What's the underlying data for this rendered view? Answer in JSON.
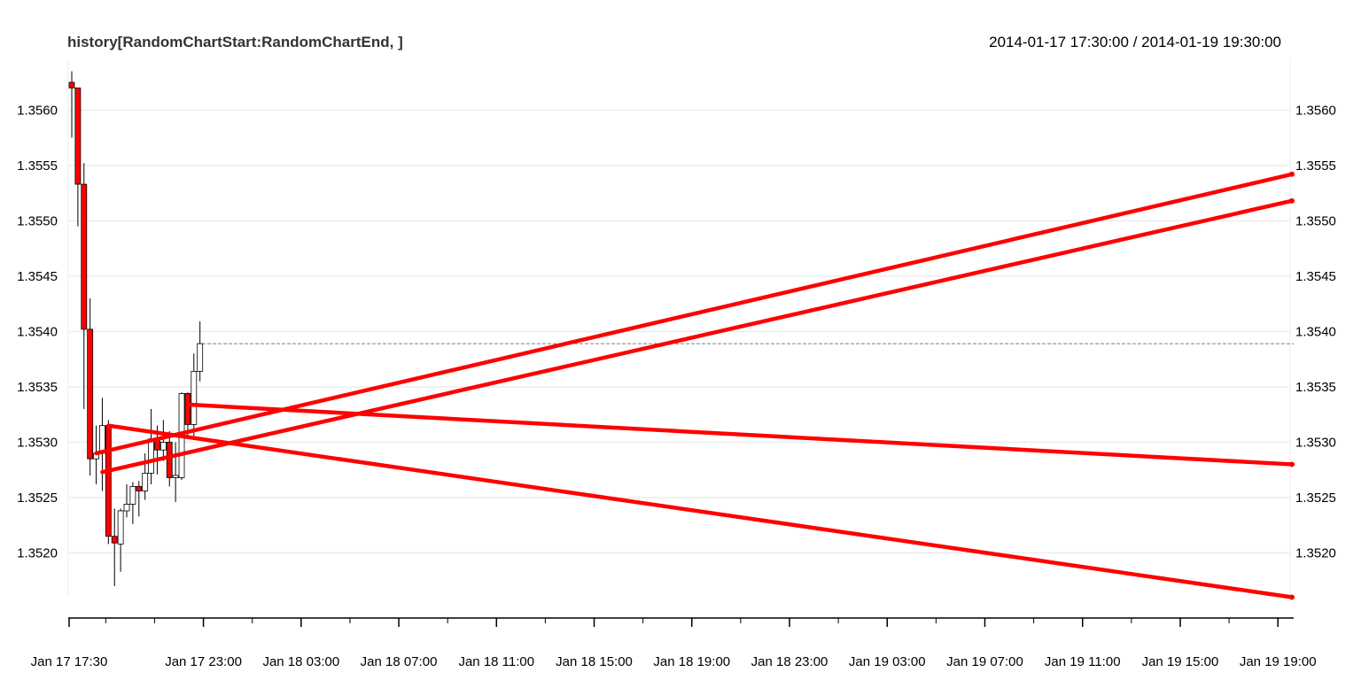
{
  "chart_data": {
    "type": "candlestick",
    "title": "history[RandomChartStart:RandomChartEnd, ]",
    "date_range": "2014-01-17 17:30:00 / 2014-01-19 19:30:00",
    "x_start": "2014-01-17 17:30",
    "x_end": "2014-01-19 19:30",
    "ylim": [
      1.35162,
      1.35645
    ],
    "y_ticks": [
      "1.3520",
      "1.3525",
      "1.3530",
      "1.3535",
      "1.3540",
      "1.3545",
      "1.3550",
      "1.3555",
      "1.3560"
    ],
    "x_tick_labels": [
      {
        "t": "2014-01-17 17:30",
        "label": "Jan 17 17:30"
      },
      {
        "t": "2014-01-17 23:00",
        "label": "Jan 17 23:00"
      },
      {
        "t": "2014-01-18 03:00",
        "label": "Jan 18 03:00"
      },
      {
        "t": "2014-01-18 07:00",
        "label": "Jan 18 07:00"
      },
      {
        "t": "2014-01-18 11:00",
        "label": "Jan 18 11:00"
      },
      {
        "t": "2014-01-18 15:00",
        "label": "Jan 18 15:00"
      },
      {
        "t": "2014-01-18 19:00",
        "label": "Jan 18 19:00"
      },
      {
        "t": "2014-01-18 23:00",
        "label": "Jan 18 23:00"
      },
      {
        "t": "2014-01-19 03:00",
        "label": "Jan 19 03:00"
      },
      {
        "t": "2014-01-19 07:00",
        "label": "Jan 19 07:00"
      },
      {
        "t": "2014-01-19 11:00",
        "label": "Jan 19 11:00"
      },
      {
        "t": "2014-01-19 15:00",
        "label": "Jan 19 15:00"
      },
      {
        "t": "2014-01-19 19:00",
        "label": "Jan 19 19:00"
      }
    ],
    "x_minor_ticks": [
      "2014-01-17 19:00",
      "2014-01-17 21:00",
      "2014-01-18 01:00",
      "2014-01-18 05:00",
      "2014-01-18 09:00",
      "2014-01-18 13:00",
      "2014-01-18 17:00",
      "2014-01-18 21:00",
      "2014-01-19 01:00",
      "2014-01-19 05:00",
      "2014-01-19 09:00",
      "2014-01-19 13:00",
      "2014-01-19 17:00"
    ],
    "last_price": 1.35389,
    "candles": [
      {
        "t": "2014-01-17 17:30",
        "o": 1.35625,
        "h": 1.35635,
        "l": 1.35575,
        "c": 1.3562
      },
      {
        "t": "2014-01-17 17:45",
        "o": 1.3562,
        "h": 1.3562,
        "l": 1.35495,
        "c": 1.35533
      },
      {
        "t": "2014-01-17 18:00",
        "o": 1.35533,
        "h": 1.35552,
        "l": 1.3533,
        "c": 1.35402
      },
      {
        "t": "2014-01-17 18:15",
        "o": 1.35402,
        "h": 1.3543,
        "l": 1.3527,
        "c": 1.35285
      },
      {
        "t": "2014-01-17 18:30",
        "o": 1.35285,
        "h": 1.35315,
        "l": 1.35262,
        "c": 1.3529
      },
      {
        "t": "2014-01-17 18:45",
        "o": 1.3529,
        "h": 1.3534,
        "l": 1.35256,
        "c": 1.35315
      },
      {
        "t": "2014-01-17 19:00",
        "o": 1.35315,
        "h": 1.3532,
        "l": 1.35208,
        "c": 1.35215
      },
      {
        "t": "2014-01-17 19:15",
        "o": 1.35215,
        "h": 1.3524,
        "l": 1.3517,
        "c": 1.35209
      },
      {
        "t": "2014-01-17 19:30",
        "o": 1.35208,
        "h": 1.3524,
        "l": 1.35183,
        "c": 1.35238
      },
      {
        "t": "2014-01-17 19:45",
        "o": 1.35238,
        "h": 1.35262,
        "l": 1.35232,
        "c": 1.35244
      },
      {
        "t": "2014-01-17 20:00",
        "o": 1.35244,
        "h": 1.35264,
        "l": 1.35226,
        "c": 1.3526
      },
      {
        "t": "2014-01-17 20:15",
        "o": 1.3526,
        "h": 1.35265,
        "l": 1.35233,
        "c": 1.35256
      },
      {
        "t": "2014-01-17 20:30",
        "o": 1.35256,
        "h": 1.3529,
        "l": 1.35248,
        "c": 1.35272
      },
      {
        "t": "2014-01-17 20:45",
        "o": 1.35272,
        "h": 1.3533,
        "l": 1.35262,
        "c": 1.35303
      },
      {
        "t": "2014-01-17 21:00",
        "o": 1.35303,
        "h": 1.35315,
        "l": 1.35271,
        "c": 1.35293
      },
      {
        "t": "2014-01-17 21:15",
        "o": 1.35293,
        "h": 1.3532,
        "l": 1.35283,
        "c": 1.353
      },
      {
        "t": "2014-01-17 21:30",
        "o": 1.353,
        "h": 1.3531,
        "l": 1.3526,
        "c": 1.35268
      },
      {
        "t": "2014-01-17 21:45",
        "o": 1.35268,
        "h": 1.353,
        "l": 1.35246,
        "c": 1.3527
      },
      {
        "t": "2014-01-17 22:00",
        "o": 1.35268,
        "h": 1.35345,
        "l": 1.35266,
        "c": 1.35344
      },
      {
        "t": "2014-01-17 22:15",
        "o": 1.35344,
        "h": 1.35345,
        "l": 1.35305,
        "c": 1.35316
      },
      {
        "t": "2014-01-17 22:30",
        "o": 1.35316,
        "h": 1.3538,
        "l": 1.35305,
        "c": 1.35364
      },
      {
        "t": "2014-01-17 22:45",
        "o": 1.35364,
        "h": 1.35409,
        "l": 1.35355,
        "c": 1.35389
      }
    ],
    "trend_lines": [
      {
        "start_t": "2014-01-17 18:30",
        "start_price": 1.3529,
        "end_t": "2014-01-19 19:30",
        "end_price": 1.35542
      },
      {
        "start_t": "2014-01-17 18:45",
        "start_price": 1.35273,
        "end_t": "2014-01-19 19:30",
        "end_price": 1.35518
      },
      {
        "start_t": "2014-01-17 19:00",
        "start_price": 1.35315,
        "end_t": "2014-01-19 19:30",
        "end_price": 1.3516
      },
      {
        "start_t": "2014-01-17 22:15",
        "start_price": 1.35334,
        "end_t": "2014-01-19 19:30",
        "end_price": 1.3528
      }
    ],
    "grid": true,
    "colors": {
      "up": "#ffffff",
      "down": "#ff0000",
      "trend": "#ff0000",
      "grid": "#ececec"
    }
  }
}
